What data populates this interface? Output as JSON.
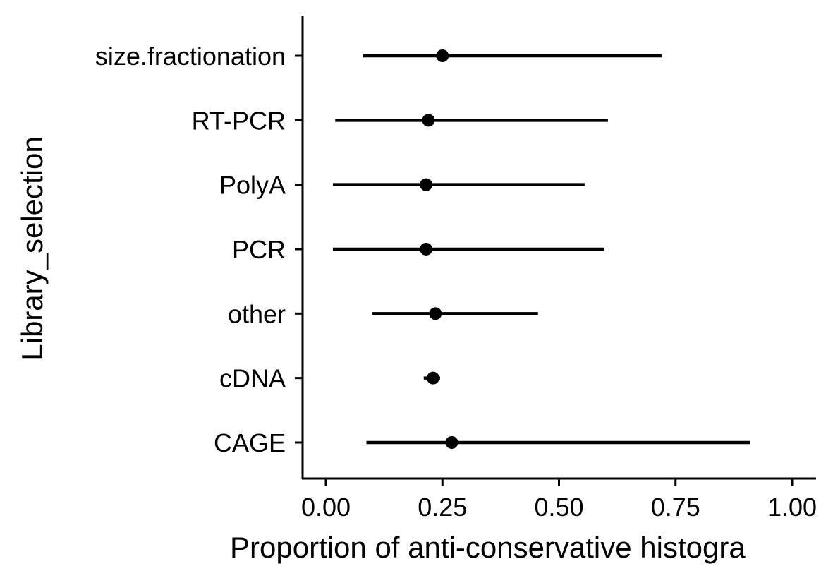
{
  "chart_data": {
    "type": "pointrange",
    "xlabel": "Proportion of anti-conservative histogra",
    "ylabel": "Library_selection",
    "xlim": [
      0.0,
      1.0
    ],
    "x_ticks": [
      0.0,
      0.25,
      0.5,
      0.75,
      1.0
    ],
    "x_tick_labels": [
      "0.00",
      "0.25",
      "0.50",
      "0.75",
      "1.00"
    ],
    "categories": [
      "size.fractionation",
      "RT-PCR",
      "PolyA",
      "PCR",
      "other",
      "cDNA",
      "CAGE"
    ],
    "points": [
      {
        "category": "size.fractionation",
        "estimate": 0.25,
        "lower": 0.08,
        "upper": 0.72
      },
      {
        "category": "RT-PCR",
        "estimate": 0.22,
        "lower": 0.02,
        "upper": 0.605
      },
      {
        "category": "PolyA",
        "estimate": 0.215,
        "lower": 0.015,
        "upper": 0.555
      },
      {
        "category": "PCR",
        "estimate": 0.215,
        "lower": 0.015,
        "upper": 0.597
      },
      {
        "category": "other",
        "estimate": 0.235,
        "lower": 0.1,
        "upper": 0.455
      },
      {
        "category": "cDNA",
        "estimate": 0.23,
        "lower": 0.21,
        "upper": 0.245
      },
      {
        "category": "CAGE",
        "estimate": 0.27,
        "lower": 0.087,
        "upper": 0.91
      }
    ],
    "grid": false,
    "color": "#000000"
  }
}
